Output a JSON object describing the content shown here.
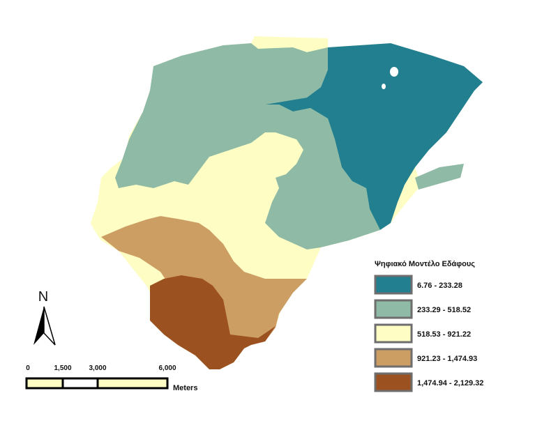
{
  "legend": {
    "title": "Ψηφιακό Μοντέλο Εδάφους",
    "classes": [
      {
        "label": "6.76 - 233.28",
        "color": "#217f8f"
      },
      {
        "label": "233.29 - 518.52",
        "color": "#8fbaa6"
      },
      {
        "label": "518.53 - 921.22",
        "color": "#fdfdc4"
      },
      {
        "label": "921.23 - 1,474.93",
        "color": "#cc9e63"
      },
      {
        "label": "1,474.94 - 2,129.32",
        "color": "#9c5120"
      }
    ]
  },
  "north_arrow": {
    "label": "N"
  },
  "scale_bar": {
    "ticks": [
      "0",
      "1,500",
      "3,000",
      "6,000"
    ],
    "unit": "Meters"
  }
}
